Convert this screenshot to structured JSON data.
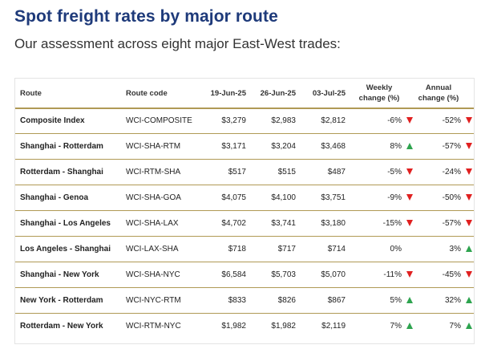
{
  "title": "Spot freight rates by major route",
  "subtitle": "Our assessment across eight major East-West trades:",
  "colors": {
    "title": "#1e3a7a",
    "divider": "#b09a55",
    "down": "#e02020",
    "up": "#2ea44f"
  },
  "table": {
    "headers": {
      "route": "Route",
      "code": "Route code",
      "d1": "19-Jun-25",
      "d2": "26-Jun-25",
      "d3": "03-Jul-25",
      "weekly_line1": "Weekly",
      "weekly_line2": "change (%)",
      "annual_line1": "Annual",
      "annual_line2": "change (%)"
    },
    "rows": [
      {
        "route": "Composite Index",
        "code": "WCI-COMPOSITE",
        "d1": "$3,279",
        "d2": "$2,983",
        "d3": "$2,812",
        "weekly": "-6%",
        "weekly_dir": "down-arrow-icon",
        "annual": "-52%",
        "annual_dir": "down-arrow-icon"
      },
      {
        "route": "Shanghai - Rotterdam",
        "code": "WCI-SHA-RTM",
        "d1": "$3,171",
        "d2": "$3,204",
        "d3": "$3,468",
        "weekly": "8%",
        "weekly_dir": "up-arrow-icon",
        "annual": "-57%",
        "annual_dir": "down-arrow-icon"
      },
      {
        "route": "Rotterdam - Shanghai",
        "code": "WCI-RTM-SHA",
        "d1": "$517",
        "d2": "$515",
        "d3": "$487",
        "weekly": "-5%",
        "weekly_dir": "down-arrow-icon",
        "annual": "-24%",
        "annual_dir": "down-arrow-icon"
      },
      {
        "route": "Shanghai - Genoa",
        "code": "WCI-SHA-GOA",
        "d1": "$4,075",
        "d2": "$4,100",
        "d3": "$3,751",
        "weekly": "-9%",
        "weekly_dir": "down-arrow-icon",
        "annual": "-50%",
        "annual_dir": "down-arrow-icon"
      },
      {
        "route": "Shanghai - Los Angeles",
        "code": "WCI-SHA-LAX",
        "d1": "$4,702",
        "d2": "$3,741",
        "d3": "$3,180",
        "weekly": "-15%",
        "weekly_dir": "down-arrow-icon",
        "annual": "-57%",
        "annual_dir": "down-arrow-icon"
      },
      {
        "route": "Los Angeles - Shanghai",
        "code": "WCI-LAX-SHA",
        "d1": "$718",
        "d2": "$717",
        "d3": "$714",
        "weekly": "0%",
        "weekly_dir": "",
        "annual": "3%",
        "annual_dir": "up-arrow-icon"
      },
      {
        "route": "Shanghai - New York",
        "code": "WCI-SHA-NYC",
        "d1": "$6,584",
        "d2": "$5,703",
        "d3": "$5,070",
        "weekly": "-11%",
        "weekly_dir": "down-arrow-icon",
        "annual": "-45%",
        "annual_dir": "down-arrow-icon"
      },
      {
        "route": "New York - Rotterdam",
        "code": "WCI-NYC-RTM",
        "d1": "$833",
        "d2": "$826",
        "d3": "$867",
        "weekly": "5%",
        "weekly_dir": "up-arrow-icon",
        "annual": "32%",
        "annual_dir": "up-arrow-icon"
      },
      {
        "route": "Rotterdam - New York",
        "code": "WCI-RTM-NYC",
        "d1": "$1,982",
        "d2": "$1,982",
        "d3": "$2,119",
        "weekly": "7%",
        "weekly_dir": "up-arrow-icon",
        "annual": "7%",
        "annual_dir": "up-arrow-icon"
      }
    ]
  }
}
